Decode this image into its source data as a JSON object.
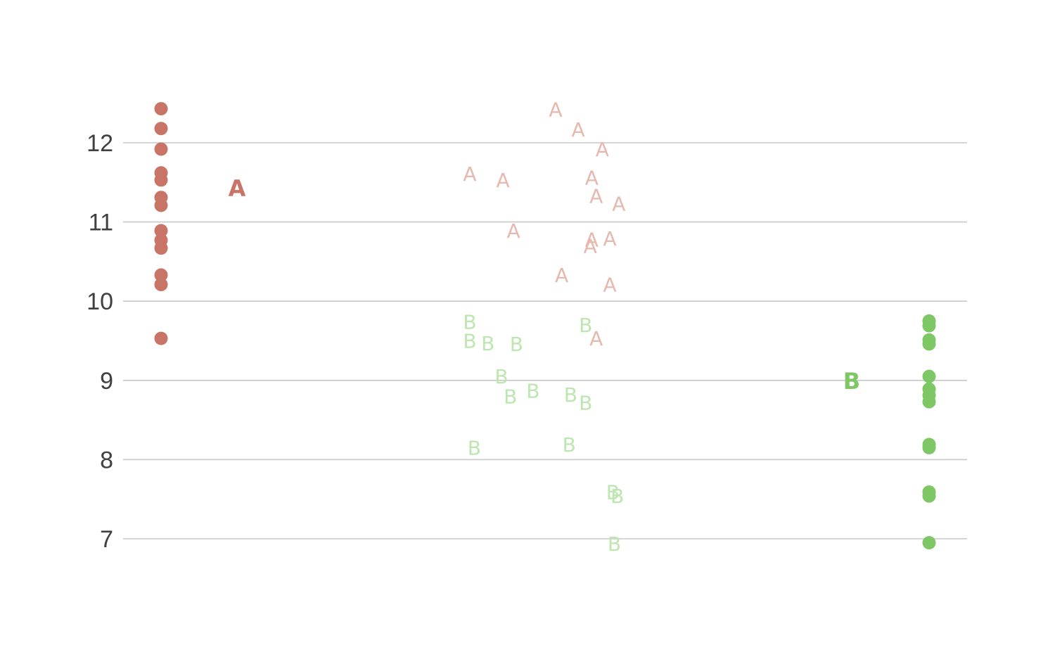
{
  "chart_data": {
    "type": "scatter",
    "title": "",
    "xlabel": "",
    "ylabel": "",
    "ylim": [
      6.6,
      13.3
    ],
    "yticks": [
      7,
      8,
      9,
      10,
      11,
      12
    ],
    "ytick_labels": [
      "7",
      "8",
      "9",
      "10",
      "11",
      "12"
    ],
    "grid": true,
    "legend": "none",
    "colors": {
      "A": "#c87466",
      "A_light": "#e6b8ae",
      "B": "#7ec765",
      "B_light": "#bde6b0",
      "grid": "#c8c8c8",
      "tick": "#404040"
    },
    "groups": [
      {
        "name": "A",
        "label": "A",
        "label_y": 11.43,
        "strip_values": [
          12.43,
          12.18,
          11.92,
          11.62,
          11.53,
          11.31,
          11.21,
          10.89,
          10.77,
          10.67,
          10.33,
          10.21,
          9.53
        ],
        "scatter_points": [
          {
            "x": 0.0,
            "y": 11.61
          },
          {
            "x": 0.22,
            "y": 11.53
          },
          {
            "x": 0.29,
            "y": 10.89
          },
          {
            "x": 0.57,
            "y": 12.42
          },
          {
            "x": 0.72,
            "y": 12.17
          },
          {
            "x": 0.88,
            "y": 11.92
          },
          {
            "x": 0.81,
            "y": 11.56
          },
          {
            "x": 0.84,
            "y": 11.33
          },
          {
            "x": 0.99,
            "y": 11.23
          },
          {
            "x": 0.61,
            "y": 10.33
          },
          {
            "x": 0.81,
            "y": 10.78
          },
          {
            "x": 0.8,
            "y": 10.7
          },
          {
            "x": 0.93,
            "y": 10.79
          },
          {
            "x": 0.93,
            "y": 10.21
          },
          {
            "x": 0.84,
            "y": 9.53
          }
        ]
      },
      {
        "name": "B",
        "label": "B",
        "label_y": 9.0,
        "strip_values": [
          9.75,
          9.69,
          9.51,
          9.46,
          9.05,
          8.89,
          8.81,
          8.73,
          8.19,
          8.15,
          7.59,
          7.54,
          6.95
        ],
        "scatter_points": [
          {
            "x": 0.0,
            "y": 9.74
          },
          {
            "x": 0.0,
            "y": 9.5
          },
          {
            "x": 0.12,
            "y": 9.47
          },
          {
            "x": 0.31,
            "y": 9.46
          },
          {
            "x": 0.21,
            "y": 9.05
          },
          {
            "x": 0.27,
            "y": 8.8
          },
          {
            "x": 0.42,
            "y": 8.87
          },
          {
            "x": 0.67,
            "y": 8.82
          },
          {
            "x": 0.77,
            "y": 8.72
          },
          {
            "x": 0.77,
            "y": 9.7
          },
          {
            "x": 0.03,
            "y": 8.15
          },
          {
            "x": 0.66,
            "y": 8.19
          },
          {
            "x": 0.95,
            "y": 7.59
          },
          {
            "x": 0.98,
            "y": 7.54
          },
          {
            "x": 0.96,
            "y": 6.94
          }
        ]
      }
    ]
  }
}
